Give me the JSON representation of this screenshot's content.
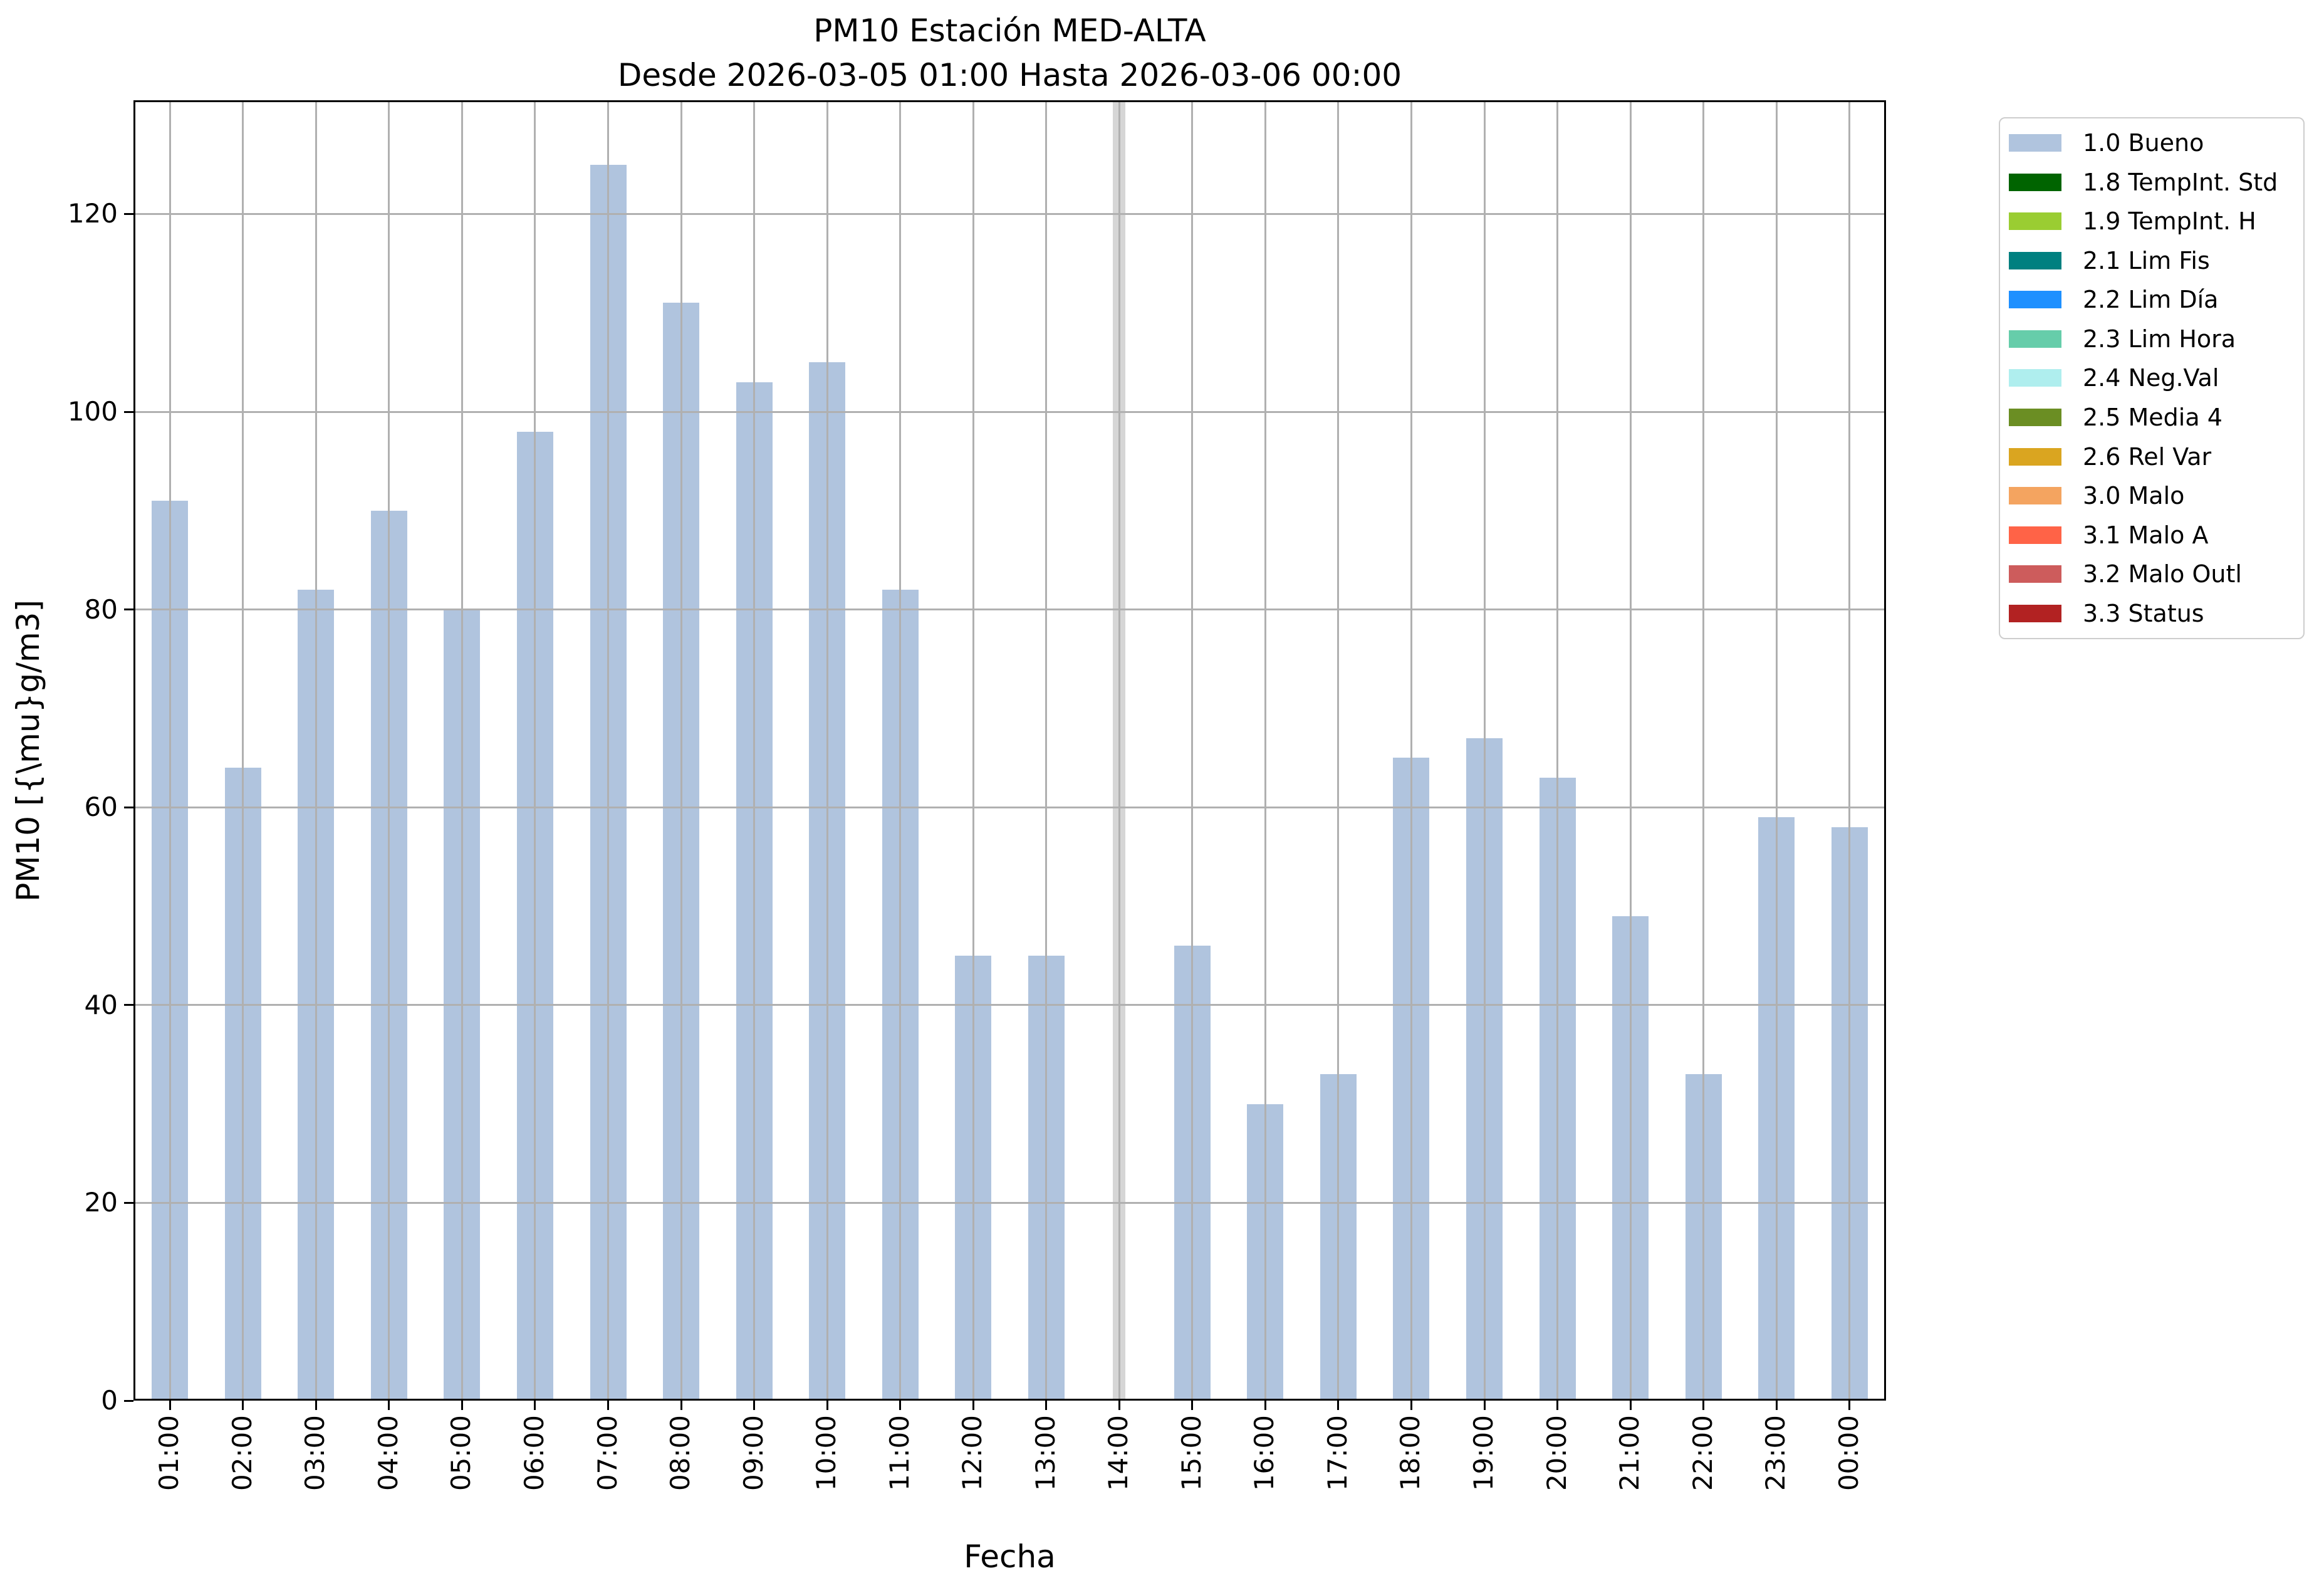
{
  "figure": {
    "title_line1": "PM10 Estación MED-ALTA",
    "title_line2": "Desde 2026-03-05 01:00 Hasta 2026-03-06 00:00",
    "xlabel": "Fecha",
    "ylabel": "PM10 [{\\mu}g/m3]"
  },
  "chart_data": {
    "type": "bar",
    "title": "PM10 Estación MED-ALTA",
    "subtitle": "Desde 2026-03-05 01:00 Hasta 2026-03-06 00:00",
    "xlabel": "Fecha",
    "ylabel": "PM10 [{\\mu}g/m3]",
    "categories": [
      "01:00",
      "02:00",
      "03:00",
      "04:00",
      "05:00",
      "06:00",
      "07:00",
      "08:00",
      "09:00",
      "10:00",
      "11:00",
      "12:00",
      "13:00",
      "14:00",
      "15:00",
      "16:00",
      "17:00",
      "18:00",
      "19:00",
      "20:00",
      "21:00",
      "22:00",
      "23:00",
      "00:00"
    ],
    "values": [
      91,
      64,
      82,
      90,
      80,
      98,
      125,
      111,
      103,
      105,
      82,
      45,
      45,
      null,
      46,
      30,
      33,
      65,
      67,
      63,
      49,
      33,
      59,
      58
    ],
    "missing_hours": [
      "14:00"
    ],
    "yticks": [
      0,
      20,
      40,
      60,
      80,
      100,
      120
    ],
    "ylim": [
      0,
      131.5
    ],
    "grid": true,
    "bar_color": "#b0c4de",
    "grid_color": "#b0b0b0",
    "missing_band_color": "#d6d6d6",
    "legend_position": "outside upper right"
  },
  "legend": {
    "items": [
      {
        "label": "1.0 Bueno",
        "color": "#b0c4de"
      },
      {
        "label": "1.8 TempInt. Std",
        "color": "#006400"
      },
      {
        "label": "1.9 TempInt. H",
        "color": "#9acd32"
      },
      {
        "label": "2.1 Lim Fis",
        "color": "#008080"
      },
      {
        "label": "2.2 Lim Día",
        "color": "#1e90ff"
      },
      {
        "label": "2.3 Lim Hora",
        "color": "#66cdaa"
      },
      {
        "label": "2.4 Neg.Val",
        "color": "#afeeee"
      },
      {
        "label": "2.5 Media 4",
        "color": "#6b8e23"
      },
      {
        "label": "2.6 Rel Var",
        "color": "#daa520"
      },
      {
        "label": "3.0 Malo",
        "color": "#f4a460"
      },
      {
        "label": "3.1 Malo A",
        "color": "#ff6347"
      },
      {
        "label": "3.2 Malo Outl",
        "color": "#cd5c5c"
      },
      {
        "label": "3.3 Status",
        "color": "#b22222"
      }
    ]
  }
}
